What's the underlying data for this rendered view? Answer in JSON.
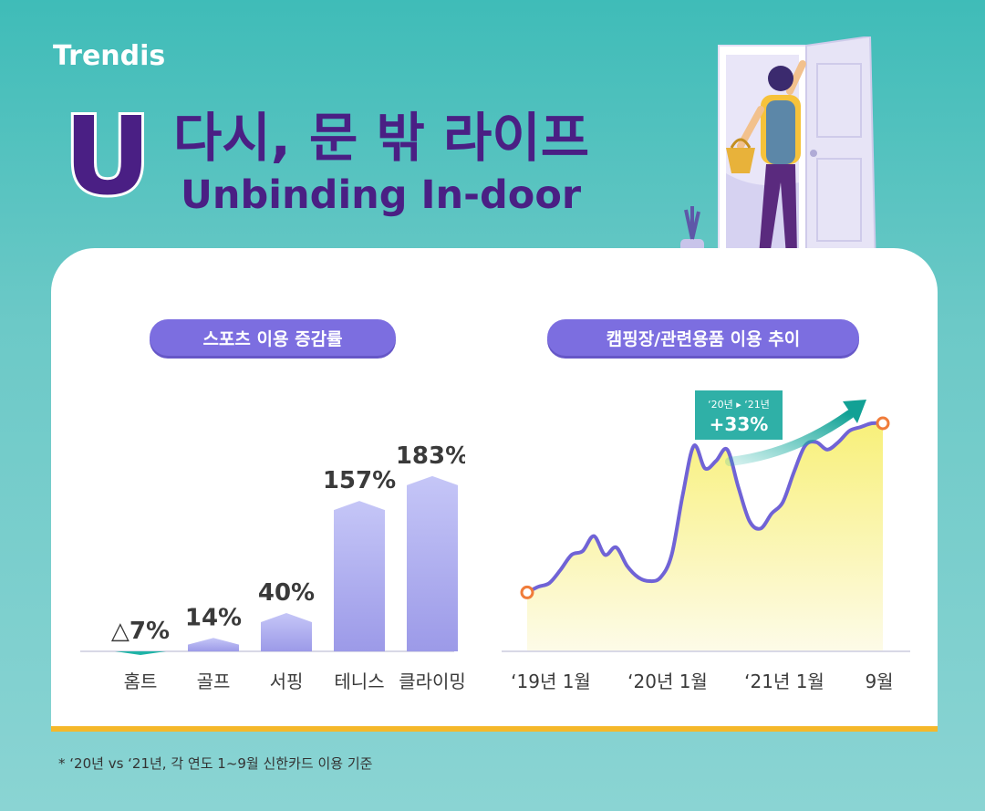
{
  "brand": {
    "logo": "Trendis"
  },
  "header": {
    "letter": "U",
    "title_ko": "다시, 문 밖 라이프",
    "title_en": "Unbinding In-door"
  },
  "colors": {
    "primary": "#4a1f84",
    "pill": "#7c6ee0",
    "bar": "#a9a8f0",
    "line": "#7063d6",
    "area": "#f8f39a",
    "arrow": "#1fb3a6",
    "badge": "#2fb0a7",
    "marker": "#f07c3a",
    "accent_rule": "#f5b82a"
  },
  "footnote": "* ‘20년 vs ‘21년, 각 연도 1~9월 신한카드 이용 기준",
  "chart_data": [
    {
      "type": "bar",
      "title": "스포츠 이용 증감률",
      "categories": [
        "홈트",
        "골프",
        "서핑",
        "테니스",
        "클라이밍"
      ],
      "values": [
        -7,
        14,
        40,
        157,
        183
      ],
      "data_labels": [
        "△7%",
        "14%",
        "40%",
        "157%",
        "183%"
      ],
      "ylim": [
        -10,
        200
      ],
      "grid": false
    },
    {
      "type": "area",
      "title": "캠핑장/관련용품 이용 추이",
      "x_ticks": [
        "‘19년 1월",
        "‘20년 1월",
        "‘21년 1월",
        "9월"
      ],
      "x": [
        0,
        1,
        2,
        3,
        4,
        5,
        6,
        7,
        8,
        9,
        10,
        11,
        12,
        13,
        14,
        15,
        16,
        17,
        18,
        19,
        20,
        21,
        22,
        23,
        24,
        25,
        26,
        27,
        28,
        29,
        30,
        31,
        32
      ],
      "values": [
        10,
        13,
        15,
        22,
        30,
        32,
        40,
        30,
        34,
        24,
        18,
        16,
        18,
        30,
        62,
        88,
        76,
        80,
        86,
        66,
        48,
        44,
        52,
        58,
        74,
        88,
        90,
        86,
        90,
        96,
        98,
        100,
        100
      ],
      "annotation": {
        "period": "‘20년 ▸ ‘21년",
        "change": "+33%"
      },
      "grid": false
    }
  ]
}
